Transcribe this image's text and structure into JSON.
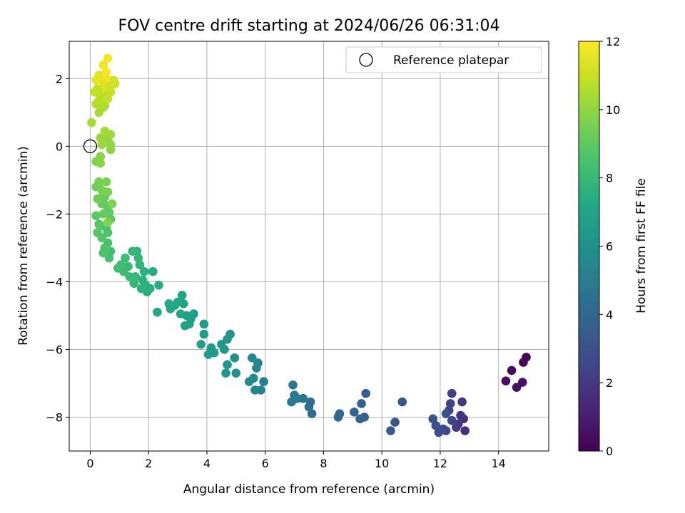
{
  "chart_data": {
    "type": "scatter",
    "title": "FOV centre drift starting at 2024/06/26 06:31:04",
    "xlabel": "Angular distance from reference (arcmin)",
    "ylabel": "Rotation from reference (arcmin)",
    "xlim": [
      -0.72,
      15.72
    ],
    "ylim": [
      -9.0,
      3.1
    ],
    "xticks": [
      "0",
      "2",
      "4",
      "6",
      "8",
      "10",
      "12",
      "14"
    ],
    "yticks": [
      "−8",
      "−6",
      "−4",
      "−2",
      "0",
      "2"
    ],
    "grid": true,
    "legend": {
      "placement": "top-right",
      "entries": [
        "Reference platepar"
      ]
    },
    "reference_point": {
      "x": 0,
      "y": 0
    },
    "colorbar": {
      "label": "Hours from first FF file",
      "ticks": [
        "0",
        "2",
        "4",
        "6",
        "8",
        "10",
        "12"
      ],
      "range": [
        0,
        12
      ],
      "colormap": "viridis"
    },
    "points": [
      [
        14.95,
        -6.23,
        0.1
      ],
      [
        14.85,
        -6.38,
        0.2
      ],
      [
        14.45,
        -6.62,
        0.3
      ],
      [
        14.25,
        -6.93,
        0.4
      ],
      [
        14.62,
        -7.12,
        0.5
      ],
      [
        14.82,
        -6.97,
        0.6
      ],
      [
        12.85,
        -8.4,
        1.6
      ],
      [
        12.8,
        -8.05,
        1.7
      ],
      [
        12.7,
        -7.95,
        1.8
      ],
      [
        12.75,
        -7.55,
        1.9
      ],
      [
        12.62,
        -8.2,
        2.0
      ],
      [
        12.55,
        -8.3,
        2.1
      ],
      [
        12.4,
        -7.3,
        2.2
      ],
      [
        12.35,
        -7.6,
        2.3
      ],
      [
        12.3,
        -7.8,
        2.4
      ],
      [
        12.4,
        -8.1,
        2.5
      ],
      [
        12.2,
        -8.4,
        2.6
      ],
      [
        12.1,
        -8.35,
        2.7
      ],
      [
        11.95,
        -8.45,
        2.8
      ],
      [
        11.85,
        -8.25,
        2.9
      ],
      [
        11.75,
        -8.05,
        3.0
      ],
      [
        12.2,
        -7.9,
        3.1
      ],
      [
        10.7,
        -7.55,
        3.2
      ],
      [
        10.45,
        -8.15,
        3.3
      ],
      [
        10.3,
        -8.4,
        3.4
      ],
      [
        9.45,
        -7.3,
        3.5
      ],
      [
        9.4,
        -8.0,
        3.6
      ],
      [
        9.25,
        -8.05,
        3.7
      ],
      [
        9.3,
        -7.6,
        3.8
      ],
      [
        9.05,
        -7.85,
        3.9
      ],
      [
        8.55,
        -7.9,
        4.0
      ],
      [
        8.5,
        -8.0,
        4.1
      ],
      [
        7.6,
        -7.9,
        4.2
      ],
      [
        7.55,
        -7.55,
        4.3
      ],
      [
        7.5,
        -7.7,
        4.4
      ],
      [
        7.3,
        -7.45,
        4.5
      ],
      [
        7.1,
        -7.45,
        4.6
      ],
      [
        7.0,
        -7.35,
        4.7
      ],
      [
        6.95,
        -7.05,
        4.8
      ],
      [
        6.9,
        -7.55,
        4.9
      ],
      [
        7.05,
        -7.45,
        5.0
      ],
      [
        5.95,
        -6.95,
        5.1
      ],
      [
        5.85,
        -7.2,
        5.2
      ],
      [
        5.75,
        -6.4,
        5.3
      ],
      [
        5.7,
        -6.55,
        5.4
      ],
      [
        5.65,
        -7.2,
        5.5
      ],
      [
        5.6,
        -6.85,
        5.6
      ],
      [
        5.55,
        -6.25,
        5.7
      ],
      [
        5.45,
        -6.95,
        5.8
      ],
      [
        5.0,
        -6.7,
        5.9
      ],
      [
        4.95,
        -6.25,
        6.0
      ],
      [
        4.8,
        -5.55,
        6.1
      ],
      [
        4.7,
        -5.7,
        6.15
      ],
      [
        4.7,
        -6.45,
        6.2
      ],
      [
        4.65,
        -6.7,
        6.25
      ],
      [
        4.6,
        -6.0,
        6.3
      ],
      [
        4.5,
        -5.85,
        6.35
      ],
      [
        4.25,
        -6.1,
        6.4
      ],
      [
        4.15,
        -5.95,
        6.45
      ],
      [
        4.05,
        -6.15,
        6.5
      ],
      [
        3.9,
        -5.55,
        6.55
      ],
      [
        3.9,
        -5.25,
        6.6
      ],
      [
        3.8,
        -5.85,
        6.65
      ],
      [
        3.55,
        -4.95,
        6.7
      ],
      [
        3.45,
        -5.1,
        6.75
      ],
      [
        3.4,
        -5.25,
        6.8
      ],
      [
        3.3,
        -5.0,
        6.85
      ],
      [
        3.25,
        -5.3,
        6.9
      ],
      [
        3.2,
        -4.65,
        6.95
      ],
      [
        3.15,
        -4.4,
        7.0
      ],
      [
        3.1,
        -4.95,
        7.05
      ],
      [
        3.0,
        -4.6,
        7.1
      ],
      [
        2.9,
        -4.7,
        7.15
      ],
      [
        2.75,
        -4.8,
        7.2
      ],
      [
        2.7,
        -4.65,
        7.25
      ],
      [
        2.3,
        -4.9,
        7.3
      ],
      [
        2.35,
        -4.1,
        7.35
      ],
      [
        2.15,
        -3.7,
        7.4
      ],
      [
        2.05,
        -4.2,
        7.45
      ],
      [
        1.95,
        -4.3,
        7.5
      ],
      [
        1.9,
        -4.1,
        7.55
      ],
      [
        1.85,
        -3.7,
        7.6
      ],
      [
        1.8,
        -3.95,
        7.65
      ],
      [
        1.75,
        -4.2,
        7.7
      ],
      [
        1.7,
        -3.5,
        7.75
      ],
      [
        1.65,
        -3.3,
        7.8
      ],
      [
        1.6,
        -3.1,
        7.85
      ],
      [
        1.55,
        -3.85,
        7.9
      ],
      [
        1.5,
        -4.05,
        7.95
      ],
      [
        1.45,
        -3.1,
        8.0
      ],
      [
        1.35,
        -3.85,
        8.05
      ],
      [
        1.3,
        -3.55,
        8.1
      ],
      [
        1.2,
        -3.3,
        8.15
      ],
      [
        1.15,
        -3.7,
        8.2
      ],
      [
        1.05,
        -3.5,
        8.25
      ],
      [
        0.95,
        -3.6,
        8.3
      ],
      [
        0.7,
        -3.1,
        8.35
      ],
      [
        0.65,
        -3.3,
        8.4
      ],
      [
        0.6,
        -2.85,
        8.45
      ],
      [
        0.6,
        -2.55,
        8.5
      ],
      [
        0.55,
        -2.4,
        8.55
      ],
      [
        0.5,
        -3.0,
        8.6
      ],
      [
        0.45,
        -3.15,
        8.65
      ],
      [
        0.4,
        -2.7,
        8.7
      ],
      [
        0.35,
        -2.35,
        8.75
      ],
      [
        0.3,
        -2.3,
        8.8
      ],
      [
        0.25,
        -2.55,
        8.85
      ],
      [
        0.2,
        -2.05,
        8.9
      ],
      [
        0.7,
        -2.15,
        8.95
      ],
      [
        0.65,
        -1.95,
        9.0
      ],
      [
        0.55,
        -1.75,
        9.05
      ],
      [
        0.5,
        -1.5,
        9.1
      ],
      [
        0.45,
        -2.0,
        9.15
      ],
      [
        0.4,
        -1.7,
        9.2
      ],
      [
        0.35,
        -1.55,
        9.25
      ],
      [
        0.3,
        -1.2,
        9.3
      ],
      [
        0.25,
        -1.55,
        9.35
      ],
      [
        0.2,
        -1.2,
        9.4
      ],
      [
        0.3,
        -1.05,
        9.45
      ],
      [
        0.4,
        -1.3,
        9.5
      ],
      [
        0.55,
        -1.05,
        9.55
      ],
      [
        0.6,
        -1.35,
        9.6
      ],
      [
        0.75,
        -1.7,
        9.65
      ],
      [
        0.6,
        -2.25,
        9.7
      ],
      [
        0.2,
        -0.45,
        9.75
      ],
      [
        0.35,
        -0.5,
        9.8
      ],
      [
        0.35,
        -0.3,
        9.85
      ],
      [
        0.7,
        -0.1,
        9.9
      ],
      [
        0.7,
        0.05,
        9.95
      ],
      [
        0.6,
        0.2,
        10.0
      ],
      [
        0.55,
        0.3,
        10.05
      ],
      [
        0.45,
        0.15,
        10.1
      ],
      [
        0.4,
        0.05,
        10.15
      ],
      [
        0.35,
        0.25,
        10.2
      ],
      [
        0.7,
        0.35,
        10.25
      ],
      [
        0.5,
        0.45,
        10.3
      ],
      [
        0.05,
        0.7,
        10.35
      ],
      [
        0.3,
        1.0,
        10.4
      ],
      [
        0.45,
        1.15,
        10.45
      ],
      [
        0.5,
        1.2,
        10.5
      ],
      [
        0.4,
        1.25,
        10.55
      ],
      [
        0.3,
        1.35,
        10.6
      ],
      [
        0.2,
        1.25,
        10.65
      ],
      [
        0.55,
        1.5,
        10.7
      ],
      [
        0.35,
        1.45,
        10.75
      ],
      [
        0.3,
        1.65,
        10.8
      ],
      [
        0.25,
        1.7,
        10.85
      ],
      [
        0.15,
        1.6,
        10.9
      ],
      [
        0.6,
        1.4,
        10.95
      ],
      [
        0.7,
        1.6,
        11.0
      ],
      [
        0.75,
        1.8,
        11.05
      ],
      [
        0.65,
        1.9,
        11.1
      ],
      [
        0.8,
        1.95,
        11.15
      ],
      [
        0.85,
        1.85,
        11.2
      ],
      [
        0.5,
        1.75,
        11.25
      ],
      [
        0.45,
        1.9,
        11.3
      ],
      [
        0.4,
        2.0,
        11.35
      ],
      [
        0.35,
        2.05,
        11.4
      ],
      [
        0.3,
        2.1,
        11.45
      ],
      [
        0.25,
        2.0,
        11.5
      ],
      [
        0.2,
        1.95,
        11.55
      ],
      [
        0.5,
        2.05,
        11.6
      ],
      [
        0.55,
        2.0,
        11.65
      ],
      [
        0.45,
        2.4,
        11.7
      ],
      [
        0.6,
        2.6,
        11.85
      ],
      [
        0.55,
        2.2,
        11.9
      ]
    ]
  }
}
